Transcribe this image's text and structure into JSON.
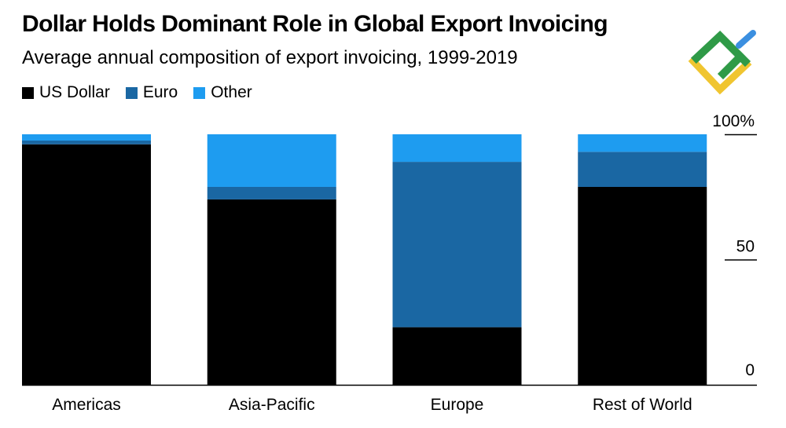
{
  "colors": {
    "us_dollar": "#000000",
    "euro": "#1a67a3",
    "other": "#1e9cf0",
    "axis": "#000000",
    "logo_green": "#2f9a47",
    "logo_yellow": "#f0c530",
    "logo_blue": "#3b8fe0"
  },
  "chart_data": {
    "type": "bar",
    "stacked": true,
    "title": "Dollar Holds Dominant Role in Global Export Invoicing",
    "subtitle": "Average annual composition of export invoicing, 1999-2019",
    "categories": [
      "Americas",
      "Asia-Pacific",
      "Europe",
      "Rest of World"
    ],
    "series": [
      {
        "name": "US Dollar",
        "values": [
          96,
          74,
          23,
          79
        ]
      },
      {
        "name": "Euro",
        "values": [
          1.5,
          5,
          66,
          14
        ]
      },
      {
        "name": "Other",
        "values": [
          2.5,
          21,
          11,
          7
        ]
      }
    ],
    "ylim": [
      0,
      100
    ],
    "yticks": [
      {
        "value": 0,
        "label": "0"
      },
      {
        "value": 50,
        "label": "50"
      },
      {
        "value": 100,
        "label": "100%"
      }
    ],
    "ylabel": "",
    "xlabel": "",
    "legend_position": "top-left",
    "grid": false
  }
}
